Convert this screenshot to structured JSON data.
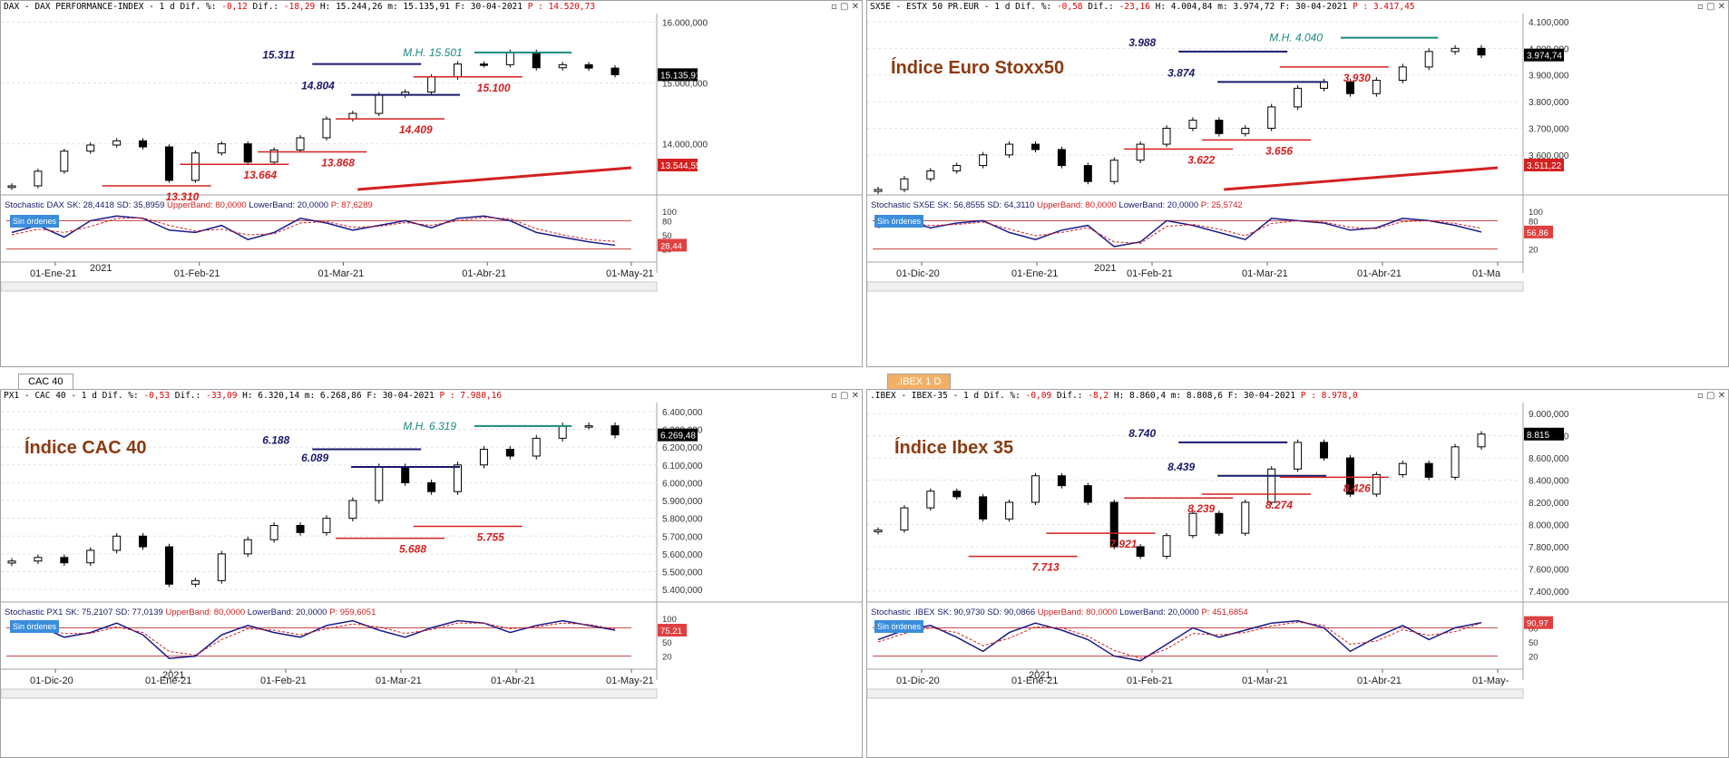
{
  "panels": [
    {
      "id": "dax",
      "header": {
        "text": "DAX - DAX PERFORMANCE-INDEX -  1 d Dif. %: ",
        "dif_pct": "-0,12",
        "mid": " Dif.: ",
        "dif": "-18,29",
        "hm": " H: 15.244,26 m: 15.135,91 F: 30-04-2021 ",
        "p": "P : 14.520,73"
      },
      "stoch_header": {
        "prefix": "Stochastic DAX ",
        "values": "SK: 28,4418 SD: 35,8959 ",
        "upper": "UpperBand: 80,0000 ",
        "lower": "LowerBand: 20,0000 ",
        "p": "P: 87,6289"
      },
      "title": "",
      "badge": "Sin órdenes",
      "price_tag": "15.135,91",
      "ma_tag": "13.544,55",
      "stoch_tag": "28,44",
      "year_label": "2021",
      "x_labels": [
        "01-Ene-21",
        "01-Feb-21",
        "01-Mar-21",
        "01-Abr-21",
        "01-May-21"
      ],
      "levels_blue": [
        "15.311",
        "14.804"
      ],
      "levels_red": [
        "15.100",
        "14.409",
        "13.868",
        "13.664",
        "13.310"
      ],
      "mh": "M.H. 15.501"
    },
    {
      "id": "sx5e",
      "header": {
        "text": "SX5E - ESTX 50 PR.EUR -  1 d Dif. %: ",
        "dif_pct": "-0,58",
        "mid": " Dif.: ",
        "dif": "-23,16",
        "hm": " H: 4.004,84 m: 3.974,72 F: 30-04-2021 ",
        "p": "P : 3.417,45"
      },
      "stoch_header": {
        "prefix": "Stochastic SX5E ",
        "values": "SK: 56,8555 SD: 64,3110 ",
        "upper": "UpperBand: 80,0000 ",
        "lower": "LowerBand: 20,0000 ",
        "p": "P: 25,5742"
      },
      "title": "Índice Euro Stoxx50",
      "badge": "Sin órdenes",
      "price_tag": "3.974,74",
      "ma_tag": "3.511,22",
      "stoch_tag": "56,86",
      "year_label": "2021",
      "x_labels": [
        "01-Dic-20",
        "01-Ene-21",
        "01-Feb-21",
        "01-Mar-21",
        "01-Abr-21",
        "01-Ma"
      ],
      "levels_blue": [
        "3.988",
        "3.874"
      ],
      "levels_red": [
        "3.930",
        "3.656",
        "3.622"
      ],
      "mh": "M.H. 4.040"
    },
    {
      "id": "cac",
      "tab": "CAC 40",
      "header": {
        "text": "PX1 - CAC 40 -  1 d Dif. %: ",
        "dif_pct": "-0,53",
        "mid": " Dif.: ",
        "dif": "-33,09",
        "hm": " H: 6.320,14 m: 6.268,86 F: 30-04-2021 ",
        "p": "P : 7.980,16"
      },
      "stoch_header": {
        "prefix": "Stochastic PX1 ",
        "values": "SK: 75,2107 SD: 77,0139 ",
        "upper": "UpperBand: 80,0000 ",
        "lower": "LowerBand: 20,0000 ",
        "p": "P: 959,6051"
      },
      "title": "Índice CAC 40",
      "badge": "Sin órdenes",
      "price_tag": "6.269,48",
      "stoch_tag": "75,21",
      "year_label": "2021",
      "x_labels": [
        "01-Dic-20",
        "01-Ene-21",
        "01-Feb-21",
        "01-Mar-21",
        "01-Abr-21",
        "01-May-21"
      ],
      "levels_blue": [
        "6.188",
        "6.089"
      ],
      "levels_red": [
        "5.755",
        "5.688"
      ],
      "mh": "M.H.  6.319"
    },
    {
      "id": "ibex",
      "tab": ".IBEX 1 D",
      "header": {
        "text": ".IBEX - IBEX-35 -  1 d Dif. %: ",
        "dif_pct": "-0,09",
        "mid": " Dif.: ",
        "dif": "-8,2",
        "hm": " H: 8.860,4 m: 8.808,6 F: 30-04-2021 ",
        "p": "P : 8.978,0"
      },
      "stoch_header": {
        "prefix": "Stochastic .IBEX ",
        "values": "SK: 90,9730 SD: 90,0866 ",
        "upper": "UpperBand: 80,0000 ",
        "lower": "LowerBand: 20,0000 ",
        "p": "P: 451,6854"
      },
      "title": "Índice Ibex 35",
      "badge": "Sin órdenes",
      "price_tag": "8.815",
      "stoch_tag": "90,97",
      "year_label": "2021",
      "x_labels": [
        "01-Dic-20",
        "01-Ene-21",
        "01-Feb-21",
        "01-Mar-21",
        "01-Abr-21",
        "01-May-"
      ],
      "levels_blue": [
        "8.740",
        "8.439"
      ],
      "levels_red": [
        "8.426",
        "8.274",
        "8.239",
        "7.921",
        "7.713"
      ]
    }
  ],
  "chart_data": [
    {
      "type": "candlestick",
      "series": [
        {
          "name": "DAX",
          "values": [
            13310,
            13550,
            13880,
            13980,
            14050,
            13950,
            13400,
            13850,
            14000,
            13700,
            13900,
            14100,
            14409,
            14500,
            14804,
            14850,
            15100,
            15311,
            15300,
            15501,
            15250,
            15300,
            15244,
            15136
          ]
        }
      ],
      "y_ticks": [
        14000,
        15000,
        16000
      ],
      "ylim": [
        13250,
        16050
      ],
      "stoch": {
        "series": [
          {
            "name": "SK",
            "values": [
              55,
              70,
              45,
              80,
              90,
              85,
              60,
              55,
              70,
              40,
              55,
              85,
              75,
              60,
              70,
              80,
              65,
              85,
              90,
              80,
              55,
              45,
              35,
              28
            ]
          },
          {
            "name": "SD",
            "values": [
              50,
              62,
              55,
              68,
              85,
              86,
              70,
              58,
              62,
              50,
              52,
              75,
              78,
              66,
              68,
              76,
              70,
              80,
              87,
              84,
              63,
              50,
              40,
              36
            ]
          }
        ],
        "y_ticks": [
          20,
          50,
          80,
          100
        ],
        "ylim": [
          0,
          100
        ],
        "upper": 80,
        "lower": 20
      }
    },
    {
      "type": "candlestick",
      "series": [
        {
          "name": "SX5E",
          "values": [
            3470,
            3510,
            3540,
            3560,
            3600,
            3640,
            3620,
            3560,
            3500,
            3580,
            3640,
            3700,
            3730,
            3680,
            3700,
            3780,
            3850,
            3874,
            3830,
            3880,
            3930,
            3988,
            4000,
            3975
          ]
        }
      ],
      "y_ticks": [
        3600,
        3700,
        3800,
        3900,
        4000,
        4100
      ],
      "ylim": [
        3470,
        4110
      ],
      "stoch": {
        "series": [
          {
            "name": "SK",
            "values": [
              70,
              80,
              65,
              75,
              80,
              55,
              40,
              60,
              70,
              25,
              35,
              80,
              70,
              55,
              40,
              85,
              80,
              75,
              60,
              65,
              85,
              80,
              70,
              56
            ]
          },
          {
            "name": "SD",
            "values": [
              65,
              75,
              70,
              72,
              77,
              62,
              48,
              55,
              65,
              35,
              32,
              68,
              72,
              62,
              48,
              74,
              80,
              77,
              66,
              63,
              78,
              80,
              74,
              64
            ]
          }
        ],
        "y_ticks": [
          20,
          80,
          100
        ],
        "ylim": [
          0,
          100
        ],
        "upper": 80,
        "lower": 20
      }
    },
    {
      "type": "candlestick",
      "series": [
        {
          "name": "CAC 40",
          "values": [
            5560,
            5580,
            5550,
            5620,
            5700,
            5640,
            5430,
            5450,
            5600,
            5680,
            5760,
            5720,
            5800,
            5900,
            6089,
            6000,
            5950,
            6100,
            6188,
            6150,
            6250,
            6319,
            6320,
            6269
          ]
        }
      ],
      "y_ticks": [
        5400,
        5500,
        5600,
        5700,
        5800,
        5900,
        6000,
        6100,
        6200,
        6300,
        6400
      ],
      "ylim": [
        5360,
        6420
      ],
      "stoch": {
        "series": [
          {
            "name": "SK",
            "values": [
              75,
              85,
              60,
              70,
              90,
              65,
              15,
              20,
              65,
              85,
              70,
              60,
              85,
              95,
              75,
              60,
              80,
              95,
              90,
              70,
              85,
              95,
              85,
              75
            ]
          },
          {
            "name": "SD",
            "values": [
              70,
              80,
              68,
              68,
              82,
              70,
              30,
              22,
              55,
              78,
              75,
              65,
              78,
              88,
              82,
              68,
              76,
              90,
              90,
              78,
              82,
              90,
              87,
              77
            ]
          }
        ],
        "y_ticks": [
          20,
          50,
          80,
          100
        ],
        "ylim": [
          0,
          100
        ],
        "upper": 80,
        "lower": 20
      }
    },
    {
      "type": "candlestick",
      "series": [
        {
          "name": "IBEX 35",
          "values": [
            7950,
            8150,
            8300,
            8250,
            8050,
            8200,
            8439,
            8350,
            8200,
            7800,
            7713,
            7900,
            8100,
            7921,
            8200,
            8500,
            8740,
            8600,
            8274,
            8450,
            8550,
            8426,
            8700,
            8815
          ]
        }
      ],
      "y_ticks": [
        7400,
        7600,
        7800,
        8000,
        8200,
        8400,
        8600,
        8800,
        9000
      ],
      "ylim": [
        7350,
        9050
      ],
      "stoch": {
        "series": [
          {
            "name": "SK",
            "values": [
              55,
              75,
              85,
              60,
              30,
              70,
              90,
              75,
              55,
              20,
              10,
              45,
              80,
              60,
              75,
              90,
              95,
              80,
              30,
              60,
              85,
              55,
              80,
              91
            ]
          },
          {
            "name": "SD",
            "values": [
              50,
              68,
              80,
              70,
              42,
              58,
              82,
              80,
              62,
              32,
              15,
              35,
              68,
              65,
              70,
              84,
              92,
              85,
              45,
              52,
              76,
              64,
              72,
              90
            ]
          }
        ],
        "y_ticks": [
          20,
          50,
          80,
          100
        ],
        "ylim": [
          0,
          100
        ],
        "upper": 80,
        "lower": 20
      }
    }
  ]
}
